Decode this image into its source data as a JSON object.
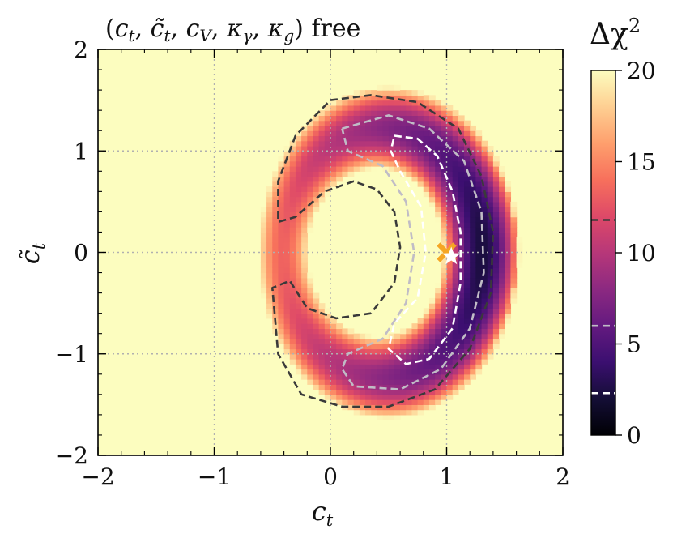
{
  "chart_data": {
    "type": "heatmap",
    "title": "(c_t, c̃_t, c_V, κ_γ, κ_g) free",
    "title_parts": {
      "open": "(",
      "c": "c",
      "t": "t",
      "sep1": ", ",
      "ctilde": "c̃",
      "sep2": ", ",
      "V": "V",
      "sep3": ", ",
      "kappa1": "κ",
      "gamma": "γ",
      "sep4": ", ",
      "kappa2": "κ",
      "g": "g",
      "close": ")",
      "free": " free"
    },
    "xlabel": "c",
    "xlabel_sub": "t",
    "ylabel": "c̃",
    "ylabel_sub": "t",
    "xlim": [
      -2,
      2
    ],
    "ylim": [
      -2,
      2
    ],
    "xticks": [
      -2,
      -1,
      0,
      1,
      2
    ],
    "yticks": [
      -2,
      -1,
      0,
      1,
      2
    ],
    "xtick_labels": [
      "−2",
      "−1",
      "0",
      "1",
      "2"
    ],
    "ytick_labels": [
      "−2",
      "−1",
      "0",
      "1",
      "2"
    ],
    "grid": true,
    "colorbar": {
      "label": "Δχ",
      "label_sup": "2",
      "range": [
        0,
        20
      ],
      "ticks": [
        0,
        5,
        10,
        15,
        20
      ],
      "tick_labels": [
        "0",
        "5",
        "10",
        "15",
        "20"
      ],
      "contour_marks": [
        2.3,
        5.99,
        11.8
      ]
    },
    "background_color": "#fcfdbf",
    "contours": [
      {
        "level": 2.3,
        "style": "dashed",
        "color": "#ffffff",
        "points": [
          [
            0.55,
            1.15
          ],
          [
            0.75,
            1.12
          ],
          [
            0.92,
            0.95
          ],
          [
            1.05,
            0.6
          ],
          [
            1.12,
            0.2
          ],
          [
            1.12,
            -0.3
          ],
          [
            1.05,
            -0.75
          ],
          [
            0.85,
            -1.05
          ],
          [
            0.65,
            -1.1
          ],
          [
            0.5,
            -0.95
          ],
          [
            0.55,
            -0.7
          ],
          [
            0.75,
            -0.45
          ],
          [
            0.82,
            0.0
          ],
          [
            0.78,
            0.45
          ],
          [
            0.6,
            0.8
          ],
          [
            0.52,
            1.0
          ],
          [
            0.55,
            1.15
          ]
        ]
      },
      {
        "level": 5.99,
        "style": "dashed",
        "color": "#c0bcc6",
        "points": [
          [
            0.1,
            1.22
          ],
          [
            0.5,
            1.35
          ],
          [
            0.85,
            1.22
          ],
          [
            1.15,
            0.9
          ],
          [
            1.3,
            0.4
          ],
          [
            1.32,
            -0.2
          ],
          [
            1.2,
            -0.75
          ],
          [
            0.95,
            -1.15
          ],
          [
            0.6,
            -1.35
          ],
          [
            0.2,
            -1.32
          ],
          [
            0.1,
            -1.15
          ],
          [
            0.15,
            -1.0
          ],
          [
            0.45,
            -0.85
          ],
          [
            0.65,
            -0.5
          ],
          [
            0.72,
            0.0
          ],
          [
            0.65,
            0.5
          ],
          [
            0.45,
            0.85
          ],
          [
            0.15,
            1.0
          ],
          [
            0.1,
            1.22
          ]
        ]
      },
      {
        "level": 11.8,
        "style": "dashed",
        "color": "#3a3a3a",
        "points": [
          [
            0.0,
            1.5
          ],
          [
            0.35,
            1.55
          ],
          [
            0.75,
            1.48
          ],
          [
            1.1,
            1.22
          ],
          [
            1.3,
            0.75
          ],
          [
            1.4,
            0.2
          ],
          [
            1.38,
            -0.4
          ],
          [
            1.2,
            -0.95
          ],
          [
            0.9,
            -1.35
          ],
          [
            0.5,
            -1.52
          ],
          [
            0.1,
            -1.52
          ],
          [
            -0.25,
            -1.4
          ],
          [
            -0.45,
            -1.0
          ],
          [
            -0.5,
            -0.35
          ],
          [
            -0.35,
            -0.28
          ],
          [
            -0.2,
            -0.55
          ],
          [
            0.05,
            -0.65
          ],
          [
            0.35,
            -0.6
          ],
          [
            0.55,
            -0.3
          ],
          [
            0.6,
            0.05
          ],
          [
            0.55,
            0.4
          ],
          [
            0.4,
            0.62
          ],
          [
            0.2,
            0.7
          ],
          [
            -0.05,
            0.6
          ],
          [
            -0.3,
            0.35
          ],
          [
            -0.45,
            0.3
          ],
          [
            -0.45,
            0.7
          ],
          [
            -0.3,
            1.15
          ],
          [
            0.0,
            1.5
          ]
        ]
      }
    ],
    "markers": [
      {
        "name": "sm-point",
        "x": 1.0,
        "y": 0.0,
        "symbol": "X",
        "color": "#f5a623"
      },
      {
        "name": "best-fit",
        "x": 1.04,
        "y": -0.04,
        "symbol": "star",
        "color": "#ffffff"
      }
    ]
  }
}
